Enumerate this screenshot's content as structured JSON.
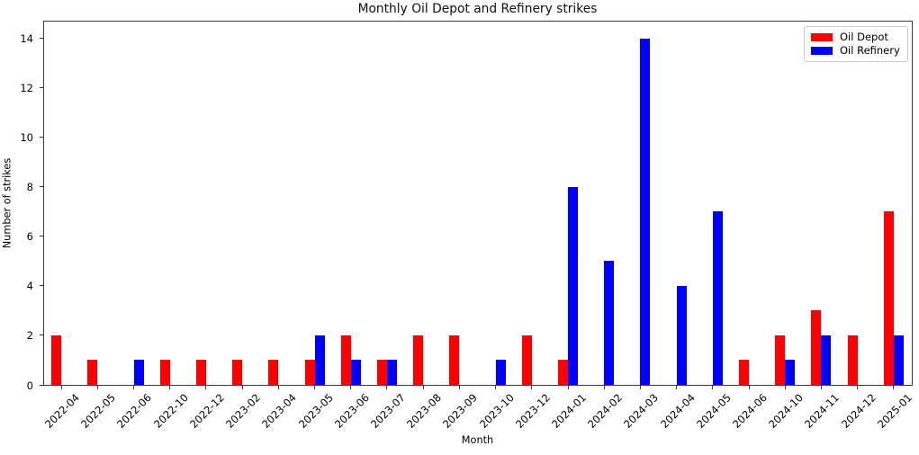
{
  "chart_data": {
    "type": "bar",
    "title": "Monthly Oil Depot and Refinery strikes",
    "xlabel": "Month",
    "ylabel": "Number of strikes",
    "categories": [
      "2022-04",
      "2022-05",
      "2022-06",
      "2022-10",
      "2022-12",
      "2023-02",
      "2023-04",
      "2023-05",
      "2023-06",
      "2023-07",
      "2023-08",
      "2023-09",
      "2023-10",
      "2023-12",
      "2024-01",
      "2024-02",
      "2024-03",
      "2024-04",
      "2024-05",
      "2024-06",
      "2024-10",
      "2024-11",
      "2024-12",
      "2025-01"
    ],
    "series": [
      {
        "name": "Oil Depot",
        "color": "#ff0000",
        "values": [
          2,
          1,
          0,
          1,
          1,
          1,
          1,
          1,
          2,
          1,
          2,
          2,
          0,
          2,
          1,
          0,
          0,
          0,
          0,
          1,
          2,
          3,
          2,
          7
        ]
      },
      {
        "name": "Oil Refinery",
        "color": "#0000ff",
        "values": [
          0,
          0,
          1,
          0,
          0,
          0,
          0,
          2,
          1,
          1,
          0,
          0,
          1,
          0,
          8,
          5,
          14,
          4,
          7,
          0,
          1,
          2,
          0,
          2
        ]
      }
    ],
    "yticks": [
      0,
      2,
      4,
      6,
      8,
      10,
      12,
      14
    ],
    "ylim": [
      0,
      14.7
    ],
    "grid": false,
    "legend_position": "upper right"
  }
}
